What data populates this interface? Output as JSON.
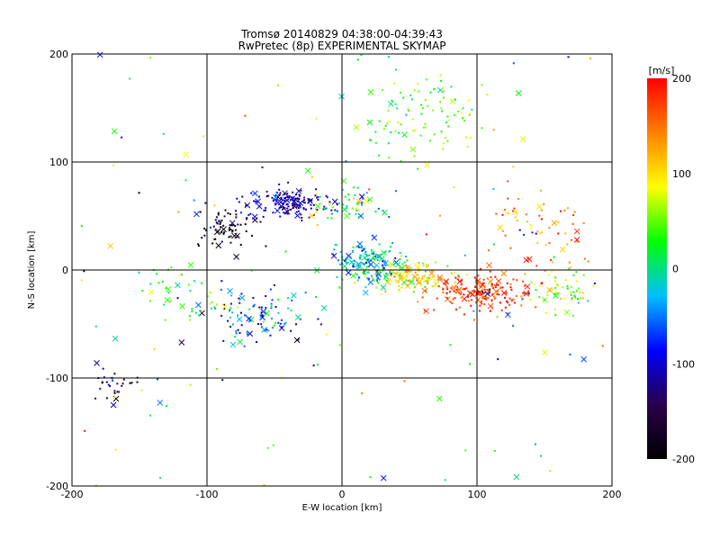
{
  "chart_data": {
    "type": "scatter",
    "title": "Tromsø 20140829 04:38:00-04:39:43",
    "subtitle": "RwPretec (8p) EXPERIMENTAL SKYMAP",
    "xlabel": "E-W location [km]",
    "ylabel": "N-S location [km]",
    "xlim": [
      -200,
      200
    ],
    "ylim": [
      -200,
      200
    ],
    "xticks": [
      "-200",
      "-100",
      "0",
      "100",
      "200"
    ],
    "yticks": [
      "-200",
      "-100",
      "0",
      "100",
      "200"
    ],
    "grid": true,
    "grid_values": [
      -100,
      0,
      100
    ],
    "markers": [
      "dot",
      "x"
    ],
    "colorbar": {
      "title": "[m/s]",
      "range": [
        -200,
        200
      ],
      "ticks": [
        "-200",
        "-100",
        "0",
        "100",
        "200"
      ],
      "colormap": [
        "#000000",
        "#2a004a",
        "#0000ff",
        "#00c0ff",
        "#00ff00",
        "#ffff00",
        "#ff8000",
        "#ff0000"
      ]
    },
    "clusters": [
      {
        "cx": 100,
        "cy": -20,
        "sx": 28,
        "sy": 12,
        "n": 190,
        "vmean": 175,
        "vsd": 35
      },
      {
        "cx": 50,
        "cy": -5,
        "sx": 22,
        "sy": 10,
        "n": 130,
        "vmean": 100,
        "vsd": 45
      },
      {
        "cx": 20,
        "cy": 5,
        "sx": 18,
        "sy": 14,
        "n": 170,
        "vmean": -20,
        "vsd": 50
      },
      {
        "cx": -40,
        "cy": 62,
        "sx": 20,
        "sy": 9,
        "n": 150,
        "vmean": -115,
        "vsd": 30
      },
      {
        "cx": -85,
        "cy": 40,
        "sx": 14,
        "sy": 15,
        "n": 70,
        "vmean": -170,
        "vsd": 40
      },
      {
        "cx": -60,
        "cy": -40,
        "sx": 30,
        "sy": 18,
        "n": 110,
        "vmean": -70,
        "vsd": 90
      },
      {
        "cx": 60,
        "cy": 145,
        "sx": 35,
        "sy": 28,
        "n": 100,
        "vmean": 45,
        "vsd": 35
      },
      {
        "cx": 150,
        "cy": 40,
        "sx": 25,
        "sy": 30,
        "n": 60,
        "vmean": 140,
        "vsd": 50
      },
      {
        "cx": 165,
        "cy": -20,
        "sx": 18,
        "sy": 15,
        "n": 60,
        "vmean": 60,
        "vsd": 40
      },
      {
        "cx": -170,
        "cy": -105,
        "sx": 14,
        "sy": 10,
        "n": 28,
        "vmean": -130,
        "vsd": 60
      },
      {
        "cx": -120,
        "cy": -20,
        "sx": 20,
        "sy": 20,
        "n": 35,
        "vmean": 20,
        "vsd": 40
      },
      {
        "cx": 5,
        "cy": 60,
        "sx": 20,
        "sy": 12,
        "n": 60,
        "vmean": 10,
        "vsd": 80
      },
      {
        "cx": 0,
        "cy": 0,
        "sx": 200,
        "sy": 200,
        "n": 120,
        "vmean": 0,
        "vsd": 120
      }
    ]
  }
}
